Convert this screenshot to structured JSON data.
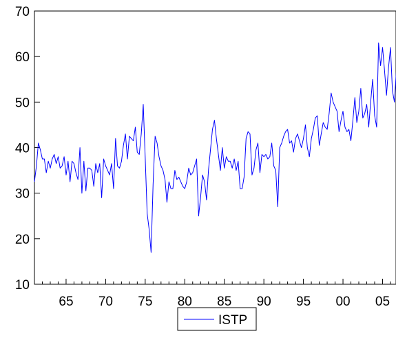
{
  "chart_data": {
    "type": "line",
    "title": "",
    "xlabel": "",
    "ylabel": "",
    "xlim": [
      1961,
      2006.7
    ],
    "ylim": [
      10,
      70
    ],
    "yticks": [
      10,
      20,
      30,
      40,
      50,
      60,
      70
    ],
    "xticks": [
      {
        "value": 1965,
        "label": "65"
      },
      {
        "value": 1970,
        "label": "70"
      },
      {
        "value": 1975,
        "label": "75"
      },
      {
        "value": 1980,
        "label": "80"
      },
      {
        "value": 1985,
        "label": "85"
      },
      {
        "value": 1990,
        "label": "90"
      },
      {
        "value": 1995,
        "label": "95"
      },
      {
        "value": 2000,
        "label": "00"
      },
      {
        "value": 2005,
        "label": "05"
      }
    ],
    "grid": false,
    "legend_position": "bottom-center",
    "series": [
      {
        "name": "ISTP",
        "color": "#0000ff",
        "points": [
          [
            1961.0,
            32.5
          ],
          [
            1961.25,
            36.0
          ],
          [
            1961.5,
            41.0
          ],
          [
            1961.75,
            39.5
          ],
          [
            1962.0,
            37.5
          ],
          [
            1962.25,
            37.5
          ],
          [
            1962.5,
            34.5
          ],
          [
            1962.75,
            37.0
          ],
          [
            1963.0,
            35.5
          ],
          [
            1963.25,
            37.5
          ],
          [
            1963.5,
            38.5
          ],
          [
            1963.75,
            36.5
          ],
          [
            1964.0,
            38.0
          ],
          [
            1964.25,
            35.5
          ],
          [
            1964.5,
            36.0
          ],
          [
            1964.75,
            38.0
          ],
          [
            1965.0,
            34.0
          ],
          [
            1965.25,
            37.0
          ],
          [
            1965.5,
            32.5
          ],
          [
            1965.75,
            37.0
          ],
          [
            1966.0,
            36.5
          ],
          [
            1966.25,
            34.5
          ],
          [
            1966.5,
            33.0
          ],
          [
            1966.75,
            40.0
          ],
          [
            1967.0,
            30.0
          ],
          [
            1967.25,
            37.0
          ],
          [
            1967.5,
            30.5
          ],
          [
            1967.75,
            35.5
          ],
          [
            1968.0,
            35.5
          ],
          [
            1968.25,
            35.0
          ],
          [
            1968.5,
            31.5
          ],
          [
            1968.75,
            36.5
          ],
          [
            1969.0,
            34.5
          ],
          [
            1969.25,
            36.5
          ],
          [
            1969.5,
            29.0
          ],
          [
            1969.75,
            37.5
          ],
          [
            1970.0,
            36.0
          ],
          [
            1970.25,
            35.0
          ],
          [
            1970.5,
            34.0
          ],
          [
            1970.75,
            36.5
          ],
          [
            1971.0,
            31.0
          ],
          [
            1971.25,
            42.0
          ],
          [
            1971.5,
            36.0
          ],
          [
            1971.75,
            35.5
          ],
          [
            1972.0,
            37.0
          ],
          [
            1972.25,
            40.5
          ],
          [
            1972.5,
            43.0
          ],
          [
            1972.75,
            37.5
          ],
          [
            1973.0,
            42.5
          ],
          [
            1973.25,
            42.0
          ],
          [
            1973.5,
            41.5
          ],
          [
            1973.75,
            44.5
          ],
          [
            1974.0,
            39.0
          ],
          [
            1974.25,
            38.5
          ],
          [
            1974.5,
            43.0
          ],
          [
            1974.75,
            49.5
          ],
          [
            1975.0,
            38.0
          ],
          [
            1975.25,
            25.5
          ],
          [
            1975.5,
            22.0
          ],
          [
            1975.75,
            17.0
          ],
          [
            1976.0,
            32.0
          ],
          [
            1976.25,
            42.5
          ],
          [
            1976.5,
            41.0
          ],
          [
            1976.75,
            38.0
          ],
          [
            1977.0,
            36.0
          ],
          [
            1977.25,
            35.0
          ],
          [
            1977.5,
            33.0
          ],
          [
            1977.75,
            28.0
          ],
          [
            1978.0,
            32.5
          ],
          [
            1978.25,
            31.0
          ],
          [
            1978.5,
            31.0
          ],
          [
            1978.75,
            35.0
          ],
          [
            1979.0,
            33.0
          ],
          [
            1979.25,
            33.5
          ],
          [
            1979.5,
            32.5
          ],
          [
            1979.75,
            31.5
          ],
          [
            1980.0,
            31.0
          ],
          [
            1980.25,
            32.5
          ],
          [
            1980.5,
            35.5
          ],
          [
            1980.75,
            34.0
          ],
          [
            1981.0,
            34.5
          ],
          [
            1981.25,
            36.0
          ],
          [
            1981.5,
            37.5
          ],
          [
            1981.75,
            25.0
          ],
          [
            1982.0,
            29.0
          ],
          [
            1982.25,
            34.0
          ],
          [
            1982.5,
            32.5
          ],
          [
            1982.75,
            28.5
          ],
          [
            1983.0,
            35.0
          ],
          [
            1983.25,
            39.5
          ],
          [
            1983.5,
            44.0
          ],
          [
            1983.75,
            46.0
          ],
          [
            1984.0,
            42.0
          ],
          [
            1984.25,
            38.5
          ],
          [
            1984.5,
            35.0
          ],
          [
            1984.75,
            40.0
          ],
          [
            1985.0,
            35.5
          ],
          [
            1985.25,
            38.0
          ],
          [
            1985.5,
            37.0
          ],
          [
            1985.75,
            37.0
          ],
          [
            1986.0,
            35.5
          ],
          [
            1986.25,
            37.5
          ],
          [
            1986.5,
            35.0
          ],
          [
            1986.75,
            37.0
          ],
          [
            1987.0,
            31.0
          ],
          [
            1987.25,
            31.0
          ],
          [
            1987.5,
            33.5
          ],
          [
            1987.75,
            42.0
          ],
          [
            1988.0,
            43.5
          ],
          [
            1988.25,
            43.0
          ],
          [
            1988.5,
            34.0
          ],
          [
            1988.75,
            35.5
          ],
          [
            1989.0,
            39.5
          ],
          [
            1989.25,
            41.0
          ],
          [
            1989.5,
            34.5
          ],
          [
            1989.75,
            38.5
          ],
          [
            1990.0,
            38.0
          ],
          [
            1990.25,
            38.5
          ],
          [
            1990.5,
            37.5
          ],
          [
            1990.75,
            38.0
          ],
          [
            1991.0,
            41.0
          ],
          [
            1991.25,
            36.0
          ],
          [
            1991.5,
            35.0
          ],
          [
            1991.75,
            27.0
          ],
          [
            1992.0,
            40.0
          ],
          [
            1992.25,
            41.0
          ],
          [
            1992.5,
            42.5
          ],
          [
            1992.75,
            43.5
          ],
          [
            1993.0,
            44.0
          ],
          [
            1993.25,
            41.0
          ],
          [
            1993.5,
            41.5
          ],
          [
            1993.75,
            39.0
          ],
          [
            1994.0,
            42.0
          ],
          [
            1994.25,
            43.0
          ],
          [
            1994.5,
            41.5
          ],
          [
            1994.75,
            40.0
          ],
          [
            1995.0,
            42.0
          ],
          [
            1995.25,
            45.0
          ],
          [
            1995.5,
            40.0
          ],
          [
            1995.75,
            38.0
          ],
          [
            1996.0,
            42.0
          ],
          [
            1996.25,
            44.0
          ],
          [
            1996.5,
            46.5
          ],
          [
            1996.75,
            47.0
          ],
          [
            1997.0,
            40.5
          ],
          [
            1997.25,
            43.0
          ],
          [
            1997.5,
            45.5
          ],
          [
            1997.75,
            44.5
          ],
          [
            1998.0,
            44.0
          ],
          [
            1998.25,
            47.5
          ],
          [
            1998.5,
            52.0
          ],
          [
            1998.75,
            50.0
          ],
          [
            1999.0,
            49.0
          ],
          [
            1999.25,
            48.0
          ],
          [
            1999.5,
            43.5
          ],
          [
            1999.75,
            46.0
          ],
          [
            2000.0,
            48.0
          ],
          [
            2000.25,
            44.5
          ],
          [
            2000.5,
            43.5
          ],
          [
            2000.75,
            44.0
          ],
          [
            2001.0,
            41.5
          ],
          [
            2001.25,
            46.0
          ],
          [
            2001.5,
            51.0
          ],
          [
            2001.75,
            45.5
          ],
          [
            2002.0,
            48.0
          ],
          [
            2002.25,
            53.0
          ],
          [
            2002.5,
            46.5
          ],
          [
            2002.75,
            47.5
          ],
          [
            2003.0,
            49.5
          ],
          [
            2003.25,
            44.5
          ],
          [
            2003.5,
            50.0
          ],
          [
            2003.75,
            55.0
          ],
          [
            2004.0,
            47.0
          ],
          [
            2004.25,
            44.5
          ],
          [
            2004.5,
            63.0
          ],
          [
            2004.75,
            58.0
          ],
          [
            2005.0,
            62.0
          ],
          [
            2005.25,
            57.0
          ],
          [
            2005.5,
            51.5
          ],
          [
            2005.75,
            57.5
          ],
          [
            2006.0,
            62.0
          ],
          [
            2006.25,
            52.5
          ],
          [
            2006.5,
            50.0
          ],
          [
            2006.75,
            57.0
          ],
          [
            2007.0,
            59.5
          ]
        ]
      }
    ]
  }
}
